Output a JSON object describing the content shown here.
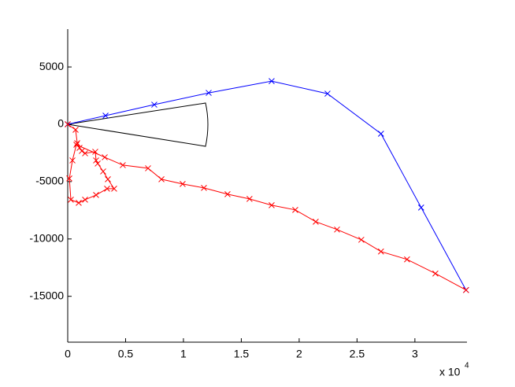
{
  "chart_data": {
    "type": "line",
    "x_scale_note": "x 10",
    "x_scale_exponent": "4",
    "xlim": [
      0,
      3.45
    ],
    "xticks": [
      0,
      0.5,
      1,
      1.5,
      2,
      2.5,
      3
    ],
    "ylim": [
      -19000,
      8300
    ],
    "yticks": [
      -15000,
      -10000,
      -5000,
      0,
      5000
    ],
    "marker": "x",
    "series": [
      {
        "color": "#0000ff",
        "x": [
          0,
          0.327,
          0.748,
          1.218,
          1.762,
          2.245,
          2.707,
          3.054,
          3.442
        ],
        "values": [
          0,
          753,
          1712,
          2740,
          3767,
          2671,
          -822,
          -7260,
          -14452
        ]
      },
      {
        "color": "#ff0000",
        "x": [
          0,
          0.068,
          0.082,
          0.102,
          0.122,
          0.15,
          0.238,
          0.245,
          0.259,
          0.306,
          0.347,
          0.401,
          0.34,
          0.245,
          0.15,
          0.095,
          0.027,
          0.014,
          0.041,
          0.075,
          0.32,
          0.476,
          0.694,
          0.81,
          0.993,
          1.177,
          1.381,
          1.571,
          1.762,
          1.966,
          2.143,
          2.327,
          2.537,
          2.707,
          2.932,
          3.177,
          3.442
        ],
        "values": [
          0,
          -479,
          -1644,
          -2055,
          -2329,
          -2534,
          -2397,
          -3151,
          -3425,
          -4110,
          -4795,
          -5617,
          -5617,
          -6165,
          -6576,
          -6850,
          -6576,
          -4726,
          -3151,
          -1781,
          -2877,
          -3562,
          -3836,
          -4795,
          -5206,
          -5549,
          -6097,
          -6507,
          -7055,
          -7466,
          -8494,
          -9179,
          -10070,
          -11097,
          -11782,
          -13015,
          -14453
        ]
      }
    ]
  }
}
